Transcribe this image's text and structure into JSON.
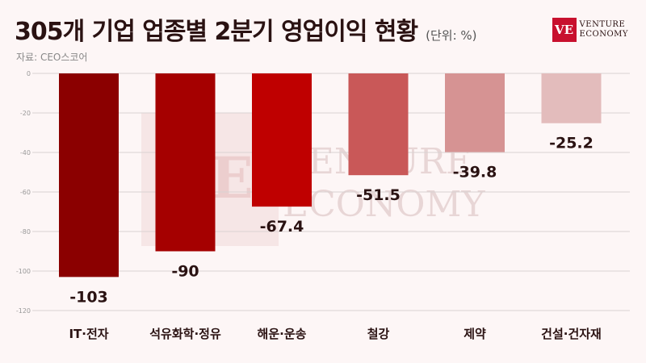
{
  "header": {
    "title": "305개 기업 업종별 2분기 영업이익 현황",
    "unit": "(단위: %)",
    "source": "자료: CEO스코어"
  },
  "logo": {
    "mark": "VE",
    "line1": "VENTURE",
    "line2": "ECONOMY",
    "brand_color": "#c8102e"
  },
  "watermark": {
    "mark": "VE",
    "line1": "VENTURE",
    "line2": "ECONOMY"
  },
  "chart_data": {
    "type": "bar",
    "categories": [
      "IT·전자",
      "석유화학·정유",
      "해운·운송",
      "철강",
      "제약",
      "건설·건자재"
    ],
    "values": [
      -103,
      -90,
      -67.4,
      -51.5,
      -39.8,
      -25.2
    ],
    "value_labels": [
      "-103",
      "-90",
      "-67.4",
      "-51.5",
      "-39.8",
      "-25.2"
    ],
    "colors": [
      "#8b0000",
      "#a50000",
      "#bf0000",
      "#c95858",
      "#d69393",
      "#e3bcbc"
    ],
    "ylim": [
      -120,
      0
    ],
    "yticks": [
      0,
      -20,
      -40,
      -60,
      -80,
      -100,
      -120
    ],
    "grid": true,
    "title": "305개 기업 업종별 2분기 영업이익 현황",
    "xlabel": "",
    "ylabel": ""
  }
}
